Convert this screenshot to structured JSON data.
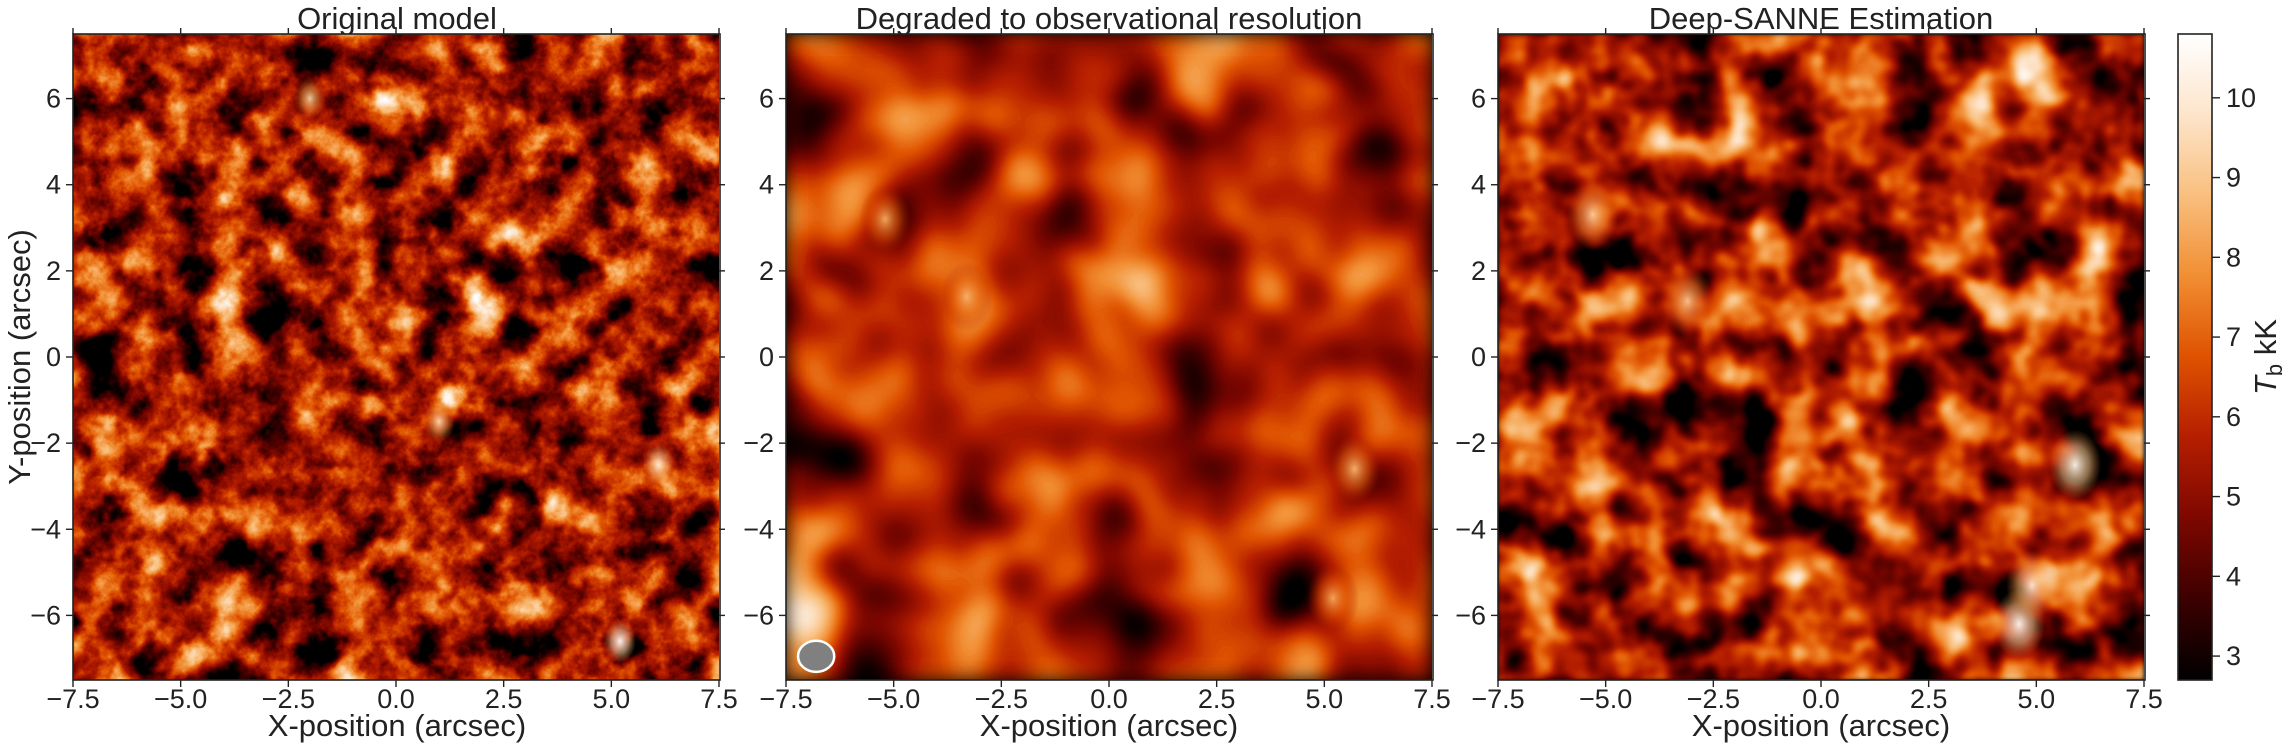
{
  "chart_data": [
    {
      "type": "heatmap",
      "title": "Original model",
      "xlabel": "X-position (arcsec)",
      "ylabel": "Y-position (arcsec)",
      "xlim": [
        -7.5,
        7.5
      ],
      "ylim": [
        -7.5,
        7.5
      ],
      "xticks": [
        "−7.5",
        "−5.0",
        "−2.5",
        "0.0",
        "2.5",
        "5.0",
        "7.5"
      ],
      "yticks": [
        "−6",
        "−4",
        "−2",
        "0",
        "2",
        "4",
        "6"
      ],
      "texture": "fine",
      "hotspots": [
        {
          "x": 5.2,
          "y": -6.6,
          "value": 10.8
        },
        {
          "x": 6.1,
          "y": -2.5,
          "value": 10.2
        },
        {
          "x": 1.0,
          "y": -1.5,
          "value": 9.5
        },
        {
          "x": -2.0,
          "y": 6.0,
          "value": 9.3
        }
      ]
    },
    {
      "type": "heatmap",
      "title": "Degraded to observational resolution",
      "xlabel": "X-position (arcsec)",
      "ylabel": "",
      "xlim": [
        -7.5,
        7.5
      ],
      "ylim": [
        -7.5,
        7.5
      ],
      "xticks": [
        "−7.5",
        "−5.0",
        "−2.5",
        "0.0",
        "2.5",
        "5.0",
        "7.5"
      ],
      "yticks": [
        "−6",
        "−4",
        "−2",
        "0",
        "2",
        "4",
        "6"
      ],
      "texture": "smooth",
      "beam": {
        "x": -6.8,
        "y": -6.95,
        "rx": 0.42,
        "ry": 0.36,
        "color": "#808080",
        "edge": "#ffffff"
      },
      "hotspots": [
        {
          "x": 5.7,
          "y": -2.6,
          "value": 8.6
        },
        {
          "x": 5.2,
          "y": -5.6,
          "value": 8.3
        },
        {
          "x": -5.2,
          "y": 3.2,
          "value": 8.4
        },
        {
          "x": -3.3,
          "y": 1.4,
          "value": 8.5
        }
      ]
    },
    {
      "type": "heatmap",
      "title": "Deep-SANNE Estimation",
      "xlabel": "X-position (arcsec)",
      "ylabel": "",
      "xlim": [
        -7.5,
        7.5
      ],
      "ylim": [
        -7.5,
        7.5
      ],
      "xticks": [
        "−7.5",
        "−5.0",
        "−2.5",
        "0.0",
        "2.5",
        "5.0",
        "7.5"
      ],
      "yticks": [
        "−6",
        "−4",
        "−2",
        "0",
        "2",
        "4",
        "6"
      ],
      "texture": "medium",
      "hotspots": [
        {
          "x": 5.9,
          "y": -2.5,
          "value": 10.5
        },
        {
          "x": 4.6,
          "y": -6.2,
          "value": 10.6
        },
        {
          "x": 4.9,
          "y": -5.3,
          "value": 10.0
        },
        {
          "x": -5.3,
          "y": 3.3,
          "value": 9.2
        },
        {
          "x": -3.1,
          "y": 1.3,
          "value": 9.0
        }
      ]
    },
    {
      "type": "colorbar",
      "label_main": "T",
      "label_sub": "b",
      "label_unit": "kK",
      "range": [
        2.7,
        10.8
      ],
      "ticks": [
        "3",
        "4",
        "5",
        "6",
        "7",
        "8",
        "9",
        "10"
      ],
      "colormap": [
        "#000000",
        "#3c0000",
        "#7d0700",
        "#b51e00",
        "#df5200",
        "#f18e33",
        "#f9bf7e",
        "#fde5cb",
        "#ffffff"
      ]
    }
  ]
}
